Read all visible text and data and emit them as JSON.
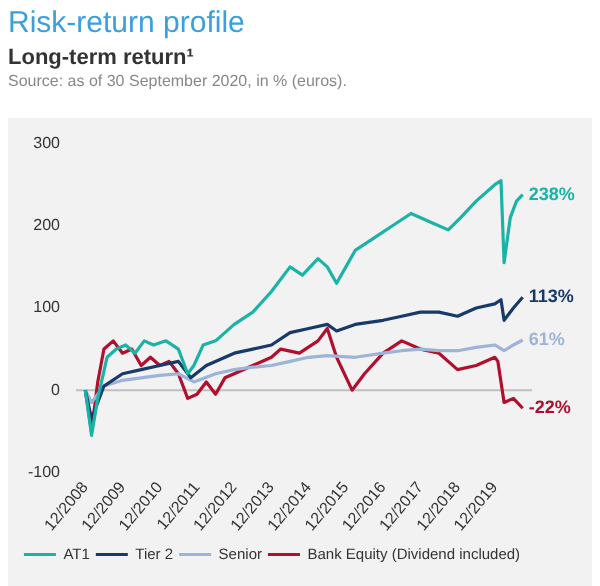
{
  "chart_data": {
    "type": "line",
    "title": "Risk-return profile",
    "subtitle": "Long-term return¹",
    "annotations": [
      "Source: as of 30 September 2020, in % (euros).",
      {
        "text": "238%",
        "x": "2020-09",
        "y": 238
      },
      {
        "text": "113%",
        "x": "2020-09",
        "y": 113
      },
      {
        "text": "61%",
        "x": "2020-09",
        "y": 61
      },
      {
        "text": "-22%",
        "x": "2020-09",
        "y": -22
      }
    ],
    "series": [
      {
        "name": "AT1",
        "color": "#1ab3a6",
        "x": [
          "2008-12",
          "2009-02",
          "2009-04",
          "2009-07",
          "2009-10",
          "2010-01",
          "2010-04",
          "2010-07",
          "2010-10",
          "2011-02",
          "2011-06",
          "2011-09",
          "2011-11",
          "2012-02",
          "2012-06",
          "2012-12",
          "2013-06",
          "2013-12",
          "2014-06",
          "2014-10",
          "2015-03",
          "2015-06",
          "2015-09",
          "2015-12",
          "2016-03",
          "2016-09",
          "2017-03",
          "2017-09",
          "2018-03",
          "2018-09",
          "2019-01",
          "2019-06",
          "2019-12",
          "2020-02",
          "2020-03",
          "2020-05",
          "2020-07",
          "2020-09"
        ],
        "values": [
          0,
          -55,
          -10,
          40,
          50,
          55,
          45,
          60,
          55,
          60,
          50,
          20,
          30,
          55,
          60,
          80,
          95,
          120,
          150,
          140,
          160,
          150,
          130,
          150,
          170,
          185,
          200,
          215,
          205,
          195,
          210,
          230,
          250,
          255,
          155,
          210,
          230,
          238
        ]
      },
      {
        "name": "Tier 2",
        "color": "#173a6a",
        "x": [
          "2008-12",
          "2009-02",
          "2009-06",
          "2009-12",
          "2010-06",
          "2010-12",
          "2011-06",
          "2011-10",
          "2012-03",
          "2012-12",
          "2013-06",
          "2013-12",
          "2014-06",
          "2014-12",
          "2015-06",
          "2015-09",
          "2016-03",
          "2016-12",
          "2017-06",
          "2017-12",
          "2018-06",
          "2018-12",
          "2019-06",
          "2019-12",
          "2020-02",
          "2020-03",
          "2020-06",
          "2020-09"
        ],
        "values": [
          0,
          -35,
          5,
          20,
          25,
          30,
          35,
          15,
          30,
          45,
          50,
          55,
          70,
          75,
          80,
          72,
          80,
          85,
          90,
          95,
          95,
          90,
          100,
          105,
          110,
          85,
          100,
          113
        ]
      },
      {
        "name": "Senior",
        "color": "#9db3d8",
        "x": [
          "2008-12",
          "2009-02",
          "2009-06",
          "2009-12",
          "2010-06",
          "2010-12",
          "2011-06",
          "2011-11",
          "2012-06",
          "2012-12",
          "2013-06",
          "2013-12",
          "2014-06",
          "2014-12",
          "2015-06",
          "2016-03",
          "2016-12",
          "2017-06",
          "2017-12",
          "2018-06",
          "2018-12",
          "2019-06",
          "2019-12",
          "2020-03",
          "2020-06",
          "2020-09"
        ],
        "values": [
          0,
          -15,
          5,
          12,
          15,
          18,
          20,
          10,
          20,
          25,
          28,
          30,
          35,
          40,
          42,
          40,
          45,
          48,
          50,
          48,
          48,
          52,
          55,
          48,
          55,
          61
        ]
      },
      {
        "name": "Bank Equity (Dividend included)",
        "color": "#b0102e",
        "x": [
          "2008-12",
          "2009-02",
          "2009-04",
          "2009-06",
          "2009-09",
          "2009-12",
          "2010-03",
          "2010-06",
          "2010-09",
          "2010-12",
          "2011-03",
          "2011-06",
          "2011-09",
          "2011-12",
          "2012-03",
          "2012-06",
          "2012-09",
          "2012-12",
          "2013-06",
          "2013-12",
          "2014-03",
          "2014-09",
          "2015-03",
          "2015-06",
          "2015-09",
          "2016-02",
          "2016-06",
          "2016-12",
          "2017-06",
          "2017-12",
          "2018-06",
          "2018-12",
          "2019-06",
          "2019-12",
          "2020-01",
          "2020-03",
          "2020-06",
          "2020-09"
        ],
        "values": [
          0,
          -50,
          10,
          50,
          60,
          45,
          50,
          30,
          40,
          30,
          35,
          20,
          -10,
          -5,
          10,
          -5,
          15,
          20,
          30,
          40,
          50,
          45,
          60,
          75,
          40,
          0,
          20,
          45,
          60,
          50,
          45,
          25,
          30,
          40,
          35,
          -15,
          -10,
          -22
        ]
      }
    ],
    "xlim": [
      "2008-09",
      "2020-12"
    ],
    "xticks": [
      {
        "value": "2008-12",
        "label": "12/2008"
      },
      {
        "value": "2009-12",
        "label": "12/2009"
      },
      {
        "value": "2010-12",
        "label": "12/2010"
      },
      {
        "value": "2011-12",
        "label": "12/2011"
      },
      {
        "value": "2012-12",
        "label": "12/2012"
      },
      {
        "value": "2013-12",
        "label": "12/2013"
      },
      {
        "value": "2014-12",
        "label": "12/2014"
      },
      {
        "value": "2015-12",
        "label": "12/2015"
      },
      {
        "value": "2016-12",
        "label": "12/2016"
      },
      {
        "value": "2017-12",
        "label": "12/2017"
      },
      {
        "value": "2018-12",
        "label": "12/2018"
      },
      {
        "value": "2019-12",
        "label": "12/2019"
      }
    ],
    "ylim": [
      -100,
      300
    ],
    "yticks": [
      -100,
      0,
      100,
      200,
      300
    ],
    "ref_lines": [
      {
        "axis": "y",
        "value": 0,
        "color": "#bfbfbf"
      }
    ],
    "grid": false,
    "legend": "bottom"
  }
}
